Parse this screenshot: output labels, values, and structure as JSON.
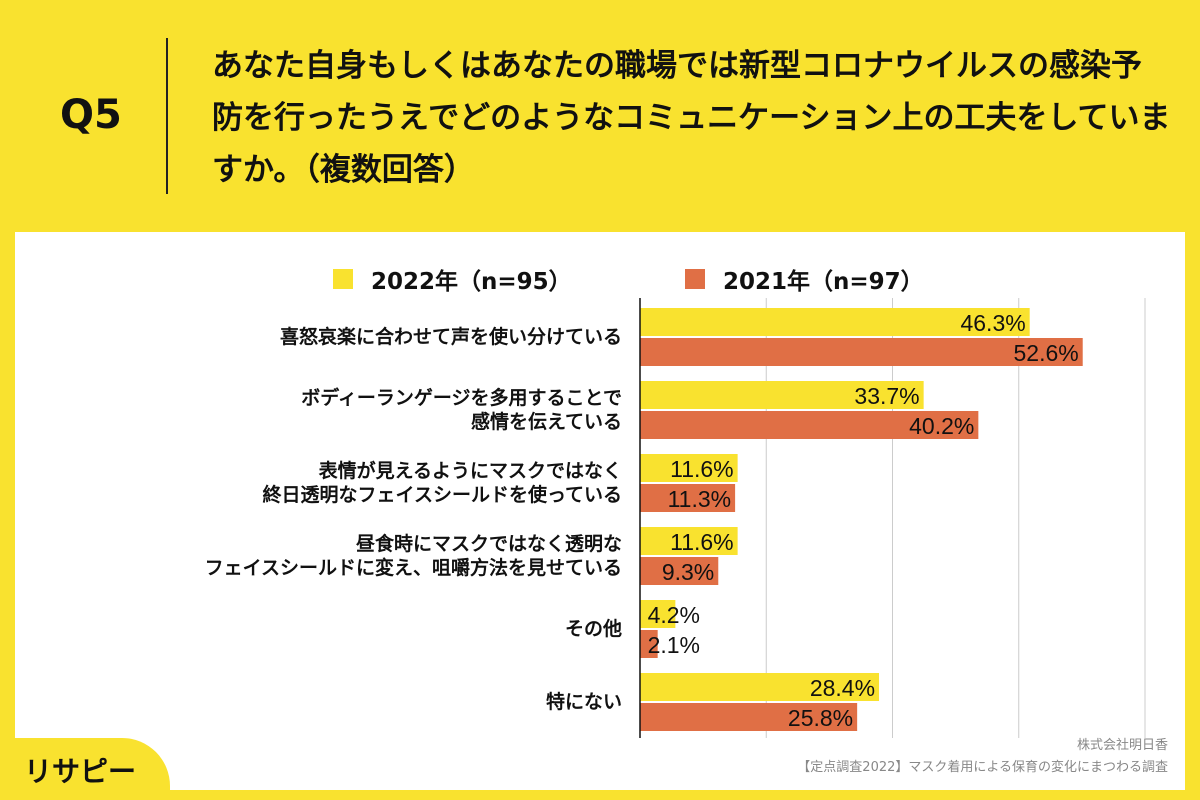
{
  "header": {
    "q": "Q5",
    "title": "あなた自身もしくはあなたの職場では新型コロナウイルスの感染予防を行ったうえでどのようなコミュニケーション上の工夫をしていますか。（複数回答）"
  },
  "chart_data": {
    "type": "bar",
    "orientation": "horizontal",
    "xlim": [
      0,
      60
    ],
    "grid": true,
    "gridlines": [
      15,
      30,
      45,
      60
    ],
    "legend_position": "top",
    "categories": [
      "喜怒哀楽に合わせて声を使い分けている",
      "ボディーランゲージを多用することで\n感情を伝えている",
      "表情が見えるようにマスクではなく\n終日透明なフェイスシールドを使っている",
      "昼食時にマスクではなく透明な\nフェイスシールドに変え、咀嚼方法を見せている",
      "その他",
      "特にない"
    ],
    "series": [
      {
        "name": "2022年（n=95）",
        "color": "#f9e22f",
        "values": [
          46.3,
          33.7,
          11.6,
          11.6,
          4.2,
          28.4
        ],
        "labels": [
          "46.3%",
          "33.7%",
          "11.6%",
          "11.6%",
          "4.2%",
          "28.4%"
        ]
      },
      {
        "name": "2021年（n=97）",
        "color": "#e06f45",
        "values": [
          52.6,
          40.2,
          11.3,
          9.3,
          2.1,
          25.8
        ],
        "labels": [
          "52.6%",
          "40.2%",
          "11.3%",
          "9.3%",
          "2.1%",
          "25.8%"
        ]
      }
    ]
  },
  "footer": {
    "company": "株式会社明日香",
    "survey": "【定点調査2022】マスク着用による保育の変化にまつわる調査",
    "logo": "リサピー"
  }
}
